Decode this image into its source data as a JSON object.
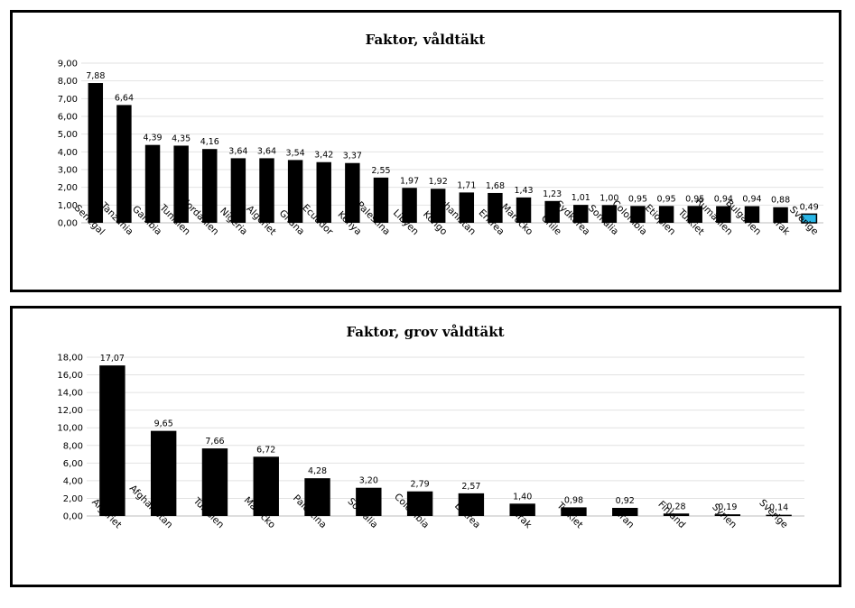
{
  "chart_data": [
    {
      "type": "bar",
      "title": "Faktor, våldtäkt",
      "xlabel": "",
      "ylabel": "",
      "ylim": [
        0,
        9
      ],
      "yticks": [
        "0,00",
        "1,00",
        "2,00",
        "3,00",
        "4,00",
        "5,00",
        "6,00",
        "7,00",
        "8,00",
        "9,00"
      ],
      "grid": true,
      "categories": [
        "Senegal",
        "Tanzania",
        "Gambia",
        "Tunisien",
        "Jordanien",
        "Nigeria",
        "Algeriet",
        "Ghana",
        "Ecuador",
        "Kenya",
        "Palestina",
        "Libyen",
        "Kongo",
        "Afghanistan",
        "Eritrea",
        "Marocko",
        "Chile",
        "Sydkorea",
        "Somalia",
        "Colombia",
        "Etiopien",
        "Turkiet",
        "Rumänien",
        "Bulgarien",
        "Irak",
        "Sverige"
      ],
      "values": [
        7.88,
        6.64,
        4.39,
        4.35,
        4.16,
        3.64,
        3.64,
        3.54,
        3.42,
        3.37,
        2.55,
        1.97,
        1.92,
        1.71,
        1.68,
        1.43,
        1.23,
        1.01,
        1.0,
        0.95,
        0.95,
        0.95,
        0.94,
        0.94,
        0.88,
        0.49
      ],
      "value_labels": [
        "7,88",
        "6,64",
        "4,39",
        "4,35",
        "4,16",
        "3,64",
        "3,64",
        "3,54",
        "3,42",
        "3,37",
        "2,55",
        "1,97",
        "1,92",
        "1,71",
        "1,68",
        "1,43",
        "1,23",
        "1,01",
        "1,00",
        "0,95",
        "0,95",
        "0,95",
        "0,94",
        "0,94",
        "0,88",
        "0,49"
      ],
      "bar_color": "#000000",
      "highlight": {
        "category": "Sverige",
        "color": "#29b6e6"
      }
    },
    {
      "type": "bar",
      "title": "Faktor, grov våldtäkt",
      "xlabel": "",
      "ylabel": "",
      "ylim": [
        0,
        18
      ],
      "yticks": [
        "0,00",
        "2,00",
        "4,00",
        "6,00",
        "8,00",
        "10,00",
        "12,00",
        "14,00",
        "16,00",
        "18,00"
      ],
      "grid": true,
      "categories": [
        "Algeriet",
        "Afghanistan",
        "Tunisien",
        "Marocko",
        "Palestina",
        "Somalia",
        "Colombia",
        "Eritrea",
        "Irak",
        "Turkiet",
        "Iran",
        "Finland",
        "Syrien",
        "Sverige"
      ],
      "values": [
        17.07,
        9.65,
        7.66,
        6.72,
        4.28,
        3.2,
        2.79,
        2.57,
        1.4,
        0.98,
        0.92,
        0.28,
        0.19,
        0.14
      ],
      "value_labels": [
        "17,07",
        "9,65",
        "7,66",
        "6,72",
        "4,28",
        "3,20",
        "2,79",
        "2,57",
        "1,40",
        "0,98",
        "0,92",
        "0,28",
        "0,19",
        "0,14"
      ],
      "bar_color": "#000000"
    }
  ]
}
